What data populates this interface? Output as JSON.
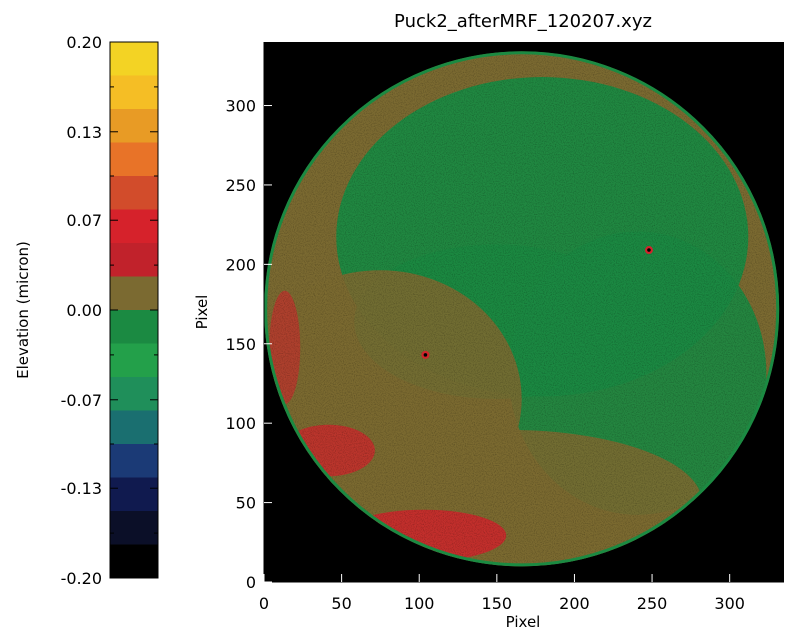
{
  "chart_data": [
    {
      "type": "heatmap",
      "title": "Puck2_afterMRF_120207.xyz",
      "xlabel": "Pixel",
      "ylabel": "Pixel",
      "xlim": [
        0,
        335
      ],
      "ylim": [
        0,
        340
      ],
      "xticks": [
        "0",
        "50",
        "100",
        "150",
        "200",
        "250",
        "300"
      ],
      "yticks": [
        "0",
        "50",
        "100",
        "150",
        "200",
        "250",
        "300"
      ],
      "background_color": "#000000",
      "surface": {
        "shape": "circle",
        "center": [
          166,
          172
        ],
        "radius": 164,
        "dominant_colors": [
          "#1b8a42",
          "#7b6a31",
          "#d0242b"
        ]
      },
      "defects": [
        {
          "x": 248,
          "y": 209
        },
        {
          "x": 104,
          "y": 143
        }
      ]
    },
    {
      "type": "colorbar",
      "label": "Elevation (micron)",
      "range": [
        -0.2,
        0.2
      ],
      "tick_labels": [
        "0.20",
        "0.13",
        "0.07",
        "0.00",
        "-0.07",
        "-0.13",
        "-0.20"
      ],
      "tick_values": [
        0.2,
        0.133,
        0.067,
        0.0,
        -0.067,
        -0.133,
        -0.2
      ],
      "colors_top_to_bottom": [
        "#f3d324",
        "#f5be25",
        "#e89b25",
        "#e87328",
        "#d24c2b",
        "#d6222b",
        "#c1222b",
        "#7b6a31",
        "#1b8a42",
        "#23a04a",
        "#1f8f5a",
        "#1a6f70",
        "#1b3a76",
        "#101a4f",
        "#0b0f28",
        "#000000"
      ]
    }
  ]
}
